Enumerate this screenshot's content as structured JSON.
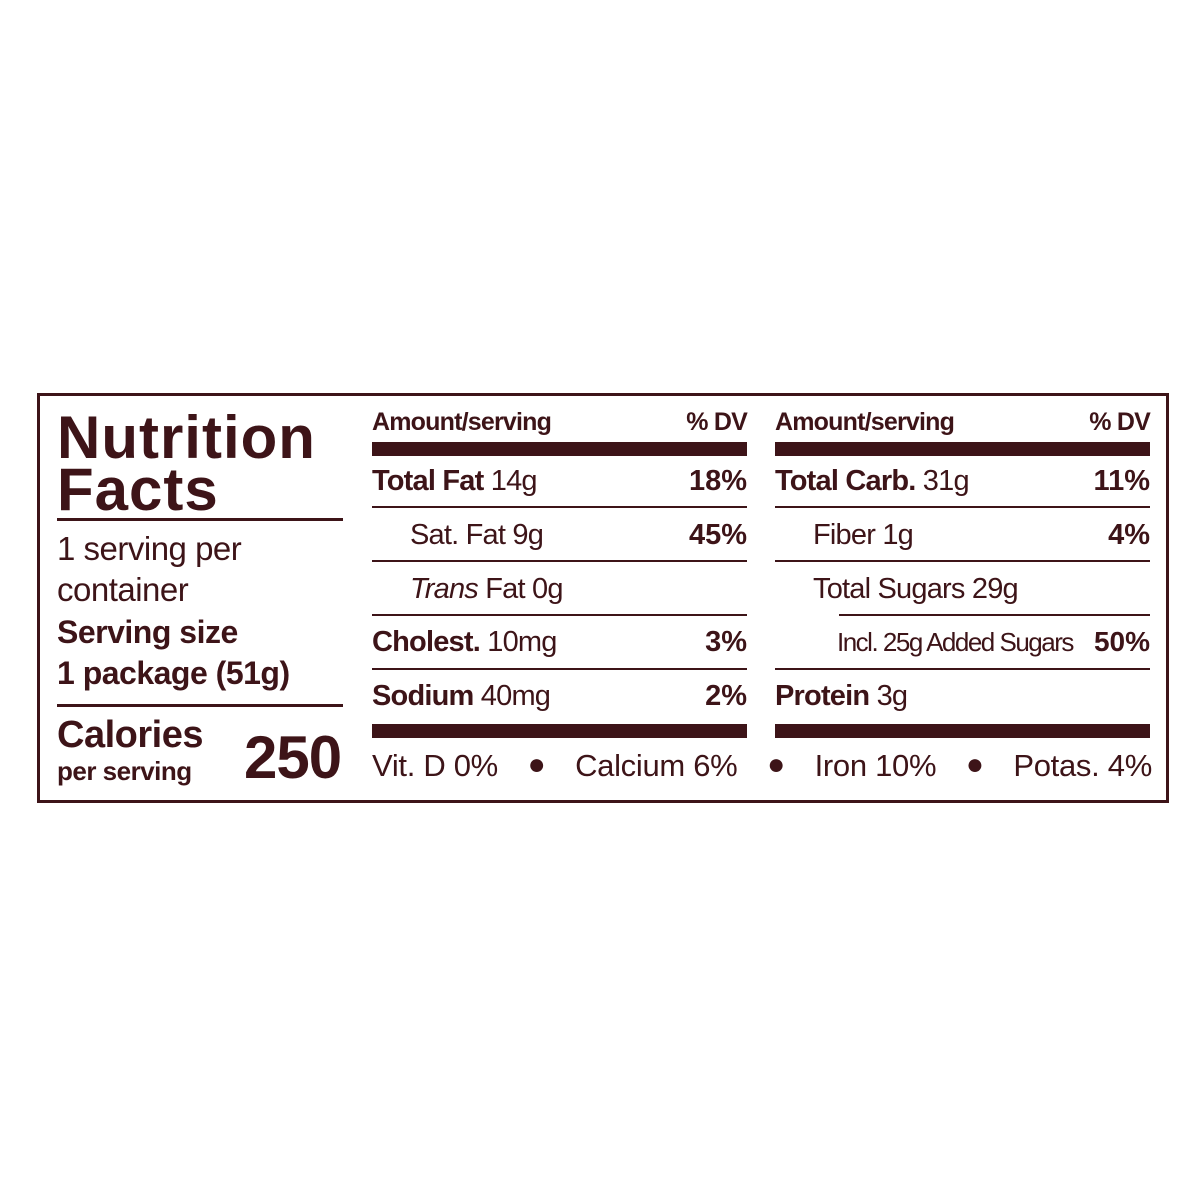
{
  "colors": {
    "ink": "#3d1418",
    "background": "#ffffff"
  },
  "title": [
    "Nutrition",
    "Facts"
  ],
  "servings_per_container": [
    "1 serving per",
    "container"
  ],
  "serving_size_label": "Serving size",
  "serving_size_value": "1 package (51g)",
  "calories_label": "Calories",
  "calories_sub": "per serving",
  "calories_value": "250",
  "left_table": {
    "header": {
      "amount": "Amount/serving",
      "dv": "% DV"
    },
    "rows": [
      {
        "name": "Total Fat",
        "amount": "14g",
        "dv": "18%"
      },
      {
        "name": "Sat. Fat",
        "amount": "9g",
        "dv": "45%"
      },
      {
        "name": "Trans",
        "amount": "Fat 0g",
        "dv": ""
      },
      {
        "name": "Cholest.",
        "amount": "10mg",
        "dv": "3%"
      },
      {
        "name": "Sodium",
        "amount": "40mg",
        "dv": "2%"
      }
    ]
  },
  "right_table": {
    "header": {
      "amount": "Amount/serving",
      "dv": "% DV"
    },
    "rows": [
      {
        "name": "Total Carb.",
        "amount": "31g",
        "dv": "11%"
      },
      {
        "name": "Fiber",
        "amount": "1g",
        "dv": "4%"
      },
      {
        "name": "Total Sugars",
        "amount": "29g",
        "dv": ""
      },
      {
        "name": "Incl. 25g Added Sugars",
        "amount": "",
        "dv": "50%"
      },
      {
        "name": "Protein",
        "amount": "3g",
        "dv": ""
      }
    ]
  },
  "vitamins": [
    "Vit. D 0%",
    "Calcium 6%",
    "Iron 10%",
    "Potas. 4%"
  ],
  "bullet": "●"
}
